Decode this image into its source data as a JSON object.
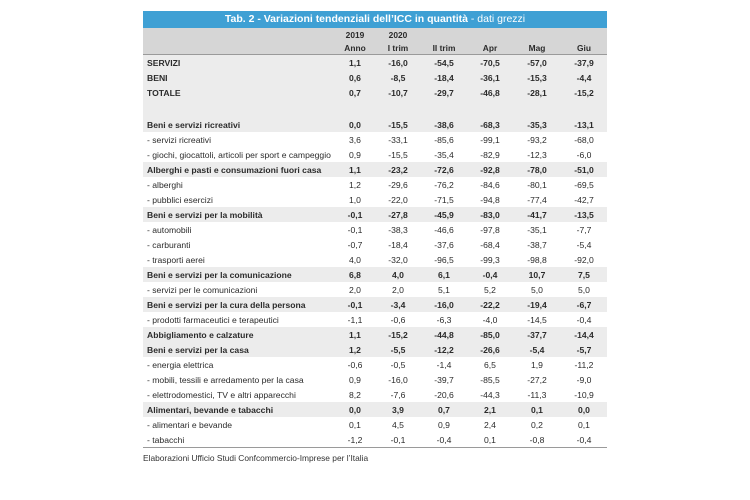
{
  "title": "Tab. 2 - Variazioni tendenziali dell’ICC in quantità",
  "subtitle": " - dati grezzi",
  "header_years": [
    "2019",
    "2020",
    "",
    "",
    "",
    ""
  ],
  "header_periods": [
    "Anno",
    "I trim",
    "II trim",
    "Apr",
    "Mag",
    "Giu"
  ],
  "rows": [
    {
      "label": "SERVIZI",
      "bold": true,
      "shade": true,
      "values": [
        "1,1",
        "-16,0",
        "-54,5",
        "-70,5",
        "-57,0",
        "-37,9"
      ]
    },
    {
      "label": "BENI",
      "bold": true,
      "shade": true,
      "values": [
        "0,6",
        "-8,5",
        "-18,4",
        "-36,1",
        "-15,3",
        "-4,4"
      ]
    },
    {
      "label": "TOTALE",
      "bold": true,
      "shade": true,
      "values": [
        "0,7",
        "-10,7",
        "-29,7",
        "-46,8",
        "-28,1",
        "-15,2"
      ]
    },
    {
      "label": "",
      "gap": true,
      "shade": true,
      "values": [
        "",
        "",
        "",
        "",
        "",
        ""
      ]
    },
    {
      "label": "Beni e servizi ricreativi",
      "bold": true,
      "shade": true,
      "values": [
        "0,0",
        "-15,5",
        "-38,6",
        "-68,3",
        "-35,3",
        "-13,1"
      ]
    },
    {
      "label": "- servizi ricreativi",
      "values": [
        "3,6",
        "-33,1",
        "-85,6",
        "-99,1",
        "-93,2",
        "-68,0"
      ]
    },
    {
      "label": "- giochi, giocattoli, articoli per sport e campeggio",
      "values": [
        "0,9",
        "-15,5",
        "-35,4",
        "-82,9",
        "-12,3",
        "-6,0"
      ]
    },
    {
      "label": "Alberghi e pasti e consumazioni fuori casa",
      "bold": true,
      "shade": true,
      "values": [
        "1,1",
        "-23,2",
        "-72,6",
        "-92,8",
        "-78,0",
        "-51,0"
      ]
    },
    {
      "label": "- alberghi",
      "values": [
        "1,2",
        "-29,6",
        "-76,2",
        "-84,6",
        "-80,1",
        "-69,5"
      ]
    },
    {
      "label": "- pubblici esercizi",
      "values": [
        "1,0",
        "-22,0",
        "-71,5",
        "-94,8",
        "-77,4",
        "-42,7"
      ]
    },
    {
      "label": "Beni e servizi per la mobilità",
      "bold": true,
      "shade": true,
      "values": [
        "-0,1",
        "-27,8",
        "-45,9",
        "-83,0",
        "-41,7",
        "-13,5"
      ]
    },
    {
      "label": "- automobili",
      "values": [
        "-0,1",
        "-38,3",
        "-46,6",
        "-97,8",
        "-35,1",
        "-7,7"
      ]
    },
    {
      "label": "- carburanti",
      "values": [
        "-0,7",
        "-18,4",
        "-37,6",
        "-68,4",
        "-38,7",
        "-5,4"
      ]
    },
    {
      "label": "- trasporti aerei",
      "values": [
        "4,0",
        "-32,0",
        "-96,5",
        "-99,3",
        "-98,8",
        "-92,0"
      ]
    },
    {
      "label": "Beni e servizi per la comunicazione",
      "bold": true,
      "shade": true,
      "values": [
        "6,8",
        "4,0",
        "6,1",
        "-0,4",
        "10,7",
        "7,5"
      ]
    },
    {
      "label": "- servizi per le comunicazioni",
      "values": [
        "2,0",
        "2,0",
        "5,1",
        "5,2",
        "5,0",
        "5,0"
      ]
    },
    {
      "label": "Beni e servizi per la cura della persona",
      "bold": true,
      "shade": true,
      "values": [
        "-0,1",
        "-3,4",
        "-16,0",
        "-22,2",
        "-19,4",
        "-6,7"
      ]
    },
    {
      "label": "- prodotti farmaceutici e terapeutici",
      "values": [
        "-1,1",
        "-0,6",
        "-6,3",
        "-4,0",
        "-14,5",
        "-0,4"
      ]
    },
    {
      "label": "Abbigliamento e calzature",
      "bold": true,
      "shade": true,
      "values": [
        "1,1",
        "-15,2",
        "-44,8",
        "-85,0",
        "-37,7",
        "-14,4"
      ]
    },
    {
      "label": "Beni e servizi per la casa",
      "bold": true,
      "shade": true,
      "values": [
        "1,2",
        "-5,5",
        "-12,2",
        "-26,6",
        "-5,4",
        "-5,7"
      ]
    },
    {
      "label": "- energia elettrica",
      "values": [
        "-0,6",
        "-0,5",
        "-1,4",
        "6,5",
        "1,9",
        "-11,2"
      ]
    },
    {
      "label": "- mobili, tessili e arredamento per la casa",
      "values": [
        "0,9",
        "-16,0",
        "-39,7",
        "-85,5",
        "-27,2",
        "-9,0"
      ]
    },
    {
      "label": "- elettrodomestici, TV e altri apparecchi",
      "values": [
        "8,2",
        "-7,6",
        "-20,6",
        "-44,3",
        "-11,3",
        "-10,9"
      ]
    },
    {
      "label": "Alimentari, bevande e tabacchi",
      "bold": true,
      "shade": true,
      "values": [
        "0,0",
        "3,9",
        "0,7",
        "2,1",
        "0,1",
        "0,0"
      ]
    },
    {
      "label": "- alimentari e bevande",
      "values": [
        "0,1",
        "4,5",
        "0,9",
        "2,4",
        "0,2",
        "0,1"
      ]
    },
    {
      "label": "- tabacchi",
      "values": [
        "-1,2",
        "-0,1",
        "-0,4",
        "0,1",
        "-0,8",
        "-0,4"
      ]
    }
  ],
  "footnote": "Elaborazioni Ufficio Studi Confcommercio-Imprese per l’Italia"
}
